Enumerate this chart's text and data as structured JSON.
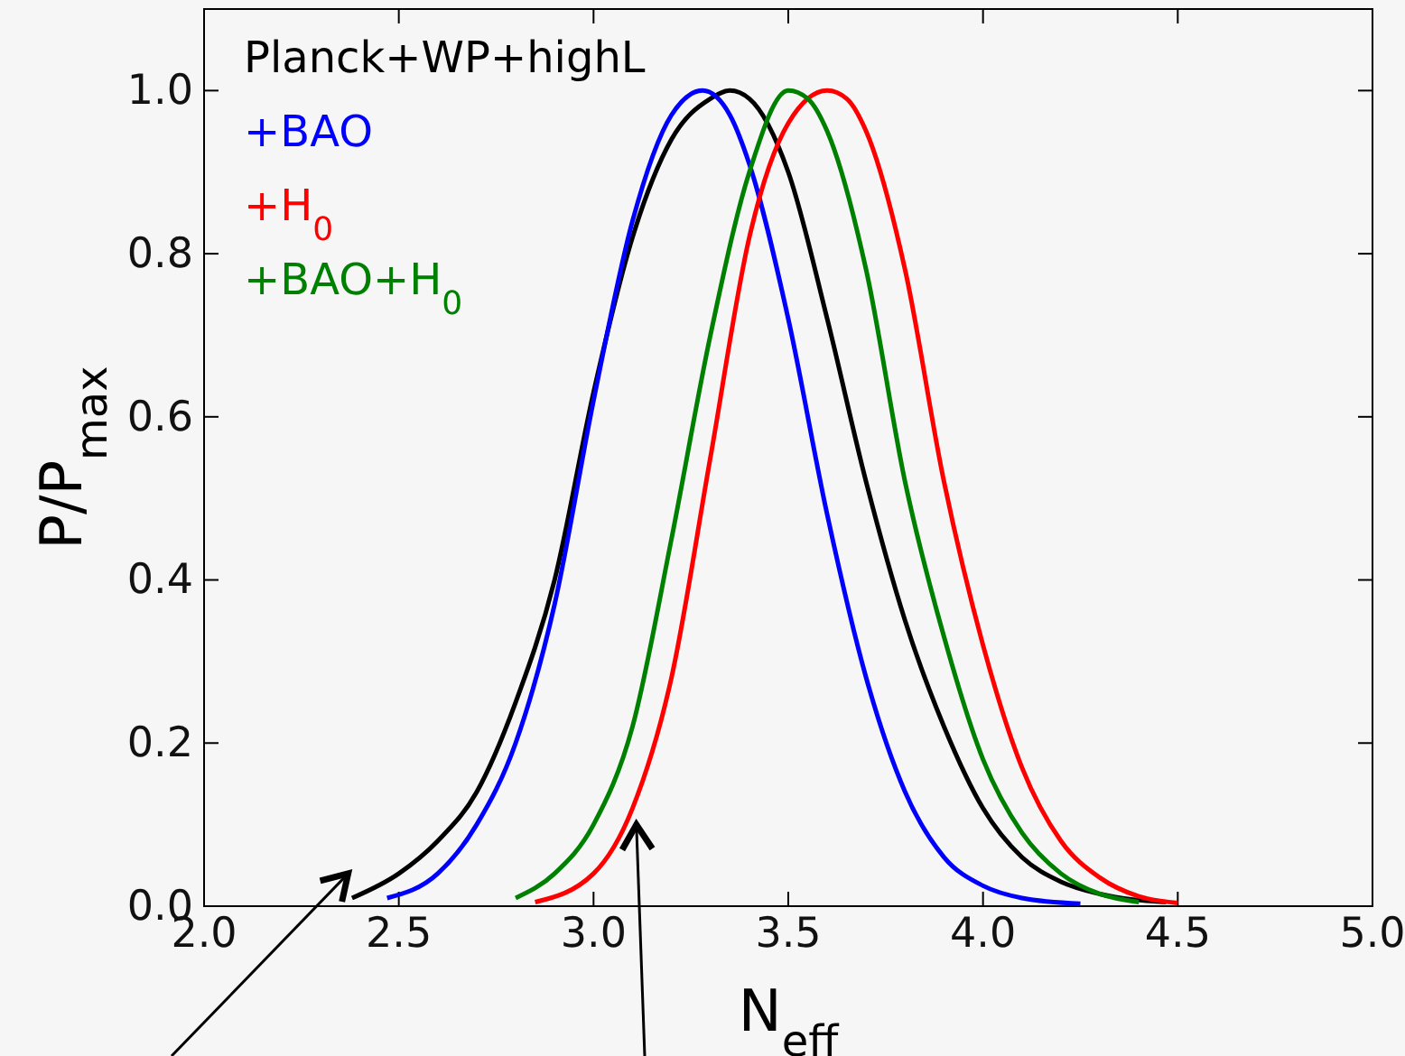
{
  "chart_data": {
    "type": "line",
    "xlabel": "N$_{eff}$",
    "ylabel": "P/P$_{max}$",
    "xlim": [
      2,
      5
    ],
    "ylim": [
      0,
      1.1
    ],
    "xticks": [
      {
        "value": 2,
        "label": "2.0"
      },
      {
        "value": 2.5,
        "label": "2.5"
      },
      {
        "value": 3,
        "label": "3.0"
      },
      {
        "value": 3.5,
        "label": "3.5"
      },
      {
        "value": 4,
        "label": "4.0"
      },
      {
        "value": 4.5,
        "label": "4.5"
      },
      {
        "value": 5,
        "label": "5.0"
      }
    ],
    "yticks": [
      {
        "value": 0,
        "label": "0.0"
      },
      {
        "value": 0.2,
        "label": "0.2"
      },
      {
        "value": 0.4,
        "label": "0.4"
      },
      {
        "value": 0.6,
        "label": "0.6"
      },
      {
        "value": 0.8,
        "label": "0.8"
      },
      {
        "value": 1,
        "label": "1.0"
      }
    ],
    "grid": false,
    "legend": "top left",
    "marker": "none",
    "line_style": "solid",
    "series": [
      {
        "name": "Planck+WP+highL",
        "color": "#000000",
        "x": [
          2.38,
          2.5,
          2.6,
          2.7,
          2.8,
          2.9,
          3.0,
          3.1,
          3.2,
          3.3,
          3.35,
          3.4,
          3.5,
          3.6,
          3.7,
          3.8,
          3.9,
          4.0,
          4.1,
          4.2,
          4.3,
          4.47
        ],
        "values": [
          0.01,
          0.04,
          0.08,
          0.14,
          0.25,
          0.4,
          0.63,
          0.82,
          0.94,
          0.99,
          1.0,
          0.99,
          0.9,
          0.72,
          0.52,
          0.35,
          0.22,
          0.12,
          0.06,
          0.03,
          0.015,
          0.005
        ]
      },
      {
        "name": "+BAO",
        "color": "#0000ff",
        "x": [
          2.47,
          2.6,
          2.7,
          2.8,
          2.9,
          3.0,
          3.1,
          3.2,
          3.28,
          3.35,
          3.4,
          3.5,
          3.6,
          3.7,
          3.8,
          3.9,
          4.0,
          4.1,
          4.25
        ],
        "values": [
          0.01,
          0.04,
          0.1,
          0.2,
          0.37,
          0.62,
          0.84,
          0.97,
          1.0,
          0.97,
          0.91,
          0.72,
          0.48,
          0.28,
          0.14,
          0.06,
          0.025,
          0.01,
          0.003
        ]
      },
      {
        "name": "+H$_{0}$",
        "color": "#ff0000",
        "x": [
          2.85,
          3.0,
          3.1,
          3.2,
          3.3,
          3.4,
          3.5,
          3.6,
          3.65,
          3.7,
          3.8,
          3.9,
          4.0,
          4.1,
          4.2,
          4.3,
          4.4,
          4.5
        ],
        "values": [
          0.005,
          0.04,
          0.12,
          0.28,
          0.55,
          0.82,
          0.96,
          1.0,
          0.99,
          0.95,
          0.78,
          0.52,
          0.32,
          0.17,
          0.08,
          0.035,
          0.012,
          0.004
        ]
      },
      {
        "name": "+BAO+H$_{0}$",
        "color": "#008000",
        "x": [
          2.8,
          2.9,
          3.0,
          3.1,
          3.2,
          3.3,
          3.4,
          3.5,
          3.55,
          3.6,
          3.7,
          3.8,
          3.9,
          4.0,
          4.1,
          4.2,
          4.3,
          4.4
        ],
        "values": [
          0.01,
          0.04,
          0.1,
          0.22,
          0.45,
          0.7,
          0.9,
          1.0,
          0.99,
          0.95,
          0.78,
          0.52,
          0.33,
          0.18,
          0.09,
          0.04,
          0.015,
          0.005
        ]
      }
    ]
  }
}
